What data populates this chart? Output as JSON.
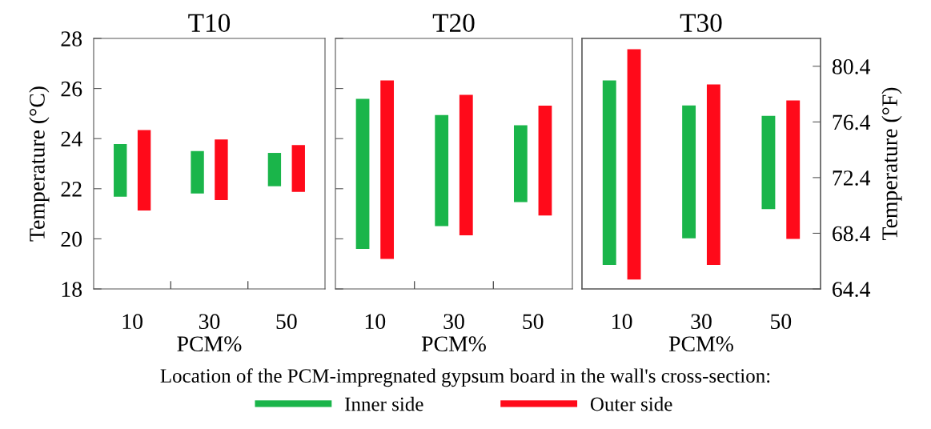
{
  "chart_data": [
    {
      "type": "bar",
      "title": "T10",
      "xlabel": "PCM%",
      "ylabel": "Temperature (°C)",
      "categories": [
        "10",
        "30",
        "50"
      ],
      "series": [
        {
          "name": "Inner side",
          "color": "#1ab54a",
          "base": [
            21.68,
            21.81,
            22.1
          ],
          "values": [
            2.1,
            1.69,
            1.33
          ]
        },
        {
          "name": "Outer side",
          "color": "#ff0a1a",
          "base": [
            21.13,
            21.55,
            21.87
          ],
          "values": [
            3.21,
            2.42,
            1.87
          ]
        }
      ],
      "ylim": [
        18,
        28
      ],
      "yticks": [
        18,
        20,
        22,
        24,
        26,
        28
      ],
      "legend": "bottom",
      "legend_title": "Location of the PCM-impregnated gypsum board in the wall's cross-section:"
    },
    {
      "type": "bar",
      "title": "T20",
      "xlabel": "PCM%",
      "categories": [
        "10",
        "30",
        "50"
      ],
      "series": [
        {
          "color": "#1ab54a",
          "base": [
            19.6,
            20.51,
            21.47
          ],
          "values": [
            5.99,
            4.43,
            3.06
          ]
        },
        {
          "color": "#ff0a1a",
          "base": [
            19.2,
            20.14,
            20.93
          ],
          "values": [
            7.12,
            5.61,
            4.39
          ]
        }
      ],
      "ylim": [
        18,
        28
      ],
      "yticks": [
        18,
        20,
        22,
        24,
        26,
        28
      ],
      "tick_labels": "x"
    },
    {
      "type": "bar",
      "title": "T30",
      "xlabel": "PCM%",
      "y2label": "Temperature (°F)",
      "categories": [
        "10",
        "30",
        "50"
      ],
      "series": [
        {
          "color": "#1ab54a",
          "axis": "y2",
          "base": [
            66.13,
            68.04,
            70.14
          ],
          "values": [
            13.25,
            9.54,
            6.7
          ]
        },
        {
          "color": "#ff0a1a",
          "axis": "y2",
          "base": [
            65.08,
            66.13,
            68.0
          ],
          "values": [
            16.55,
            12.96,
            9.94
          ]
        }
      ],
      "y2lim": [
        64.4,
        82.4
      ],
      "y2ticks": [
        64.4,
        68.4,
        72.4,
        76.4,
        80.4
      ]
    }
  ]
}
